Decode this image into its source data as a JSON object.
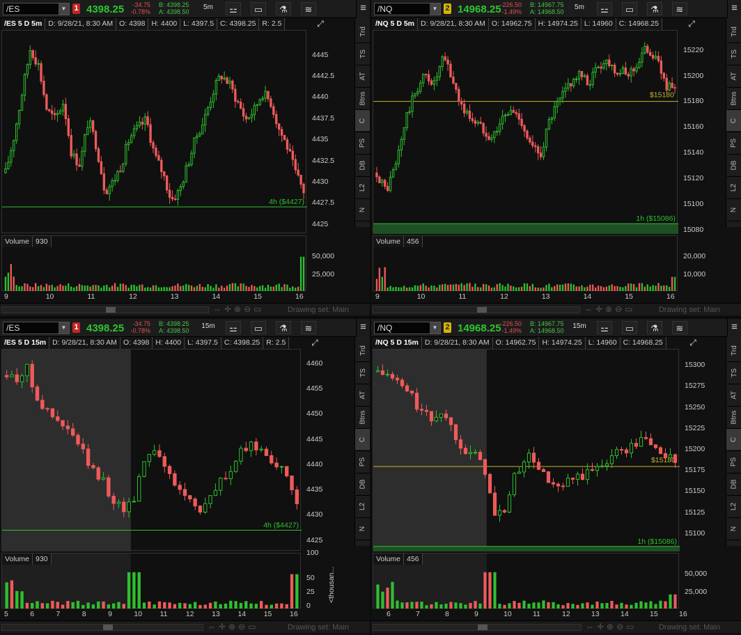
{
  "panes": [
    {
      "symbol": "/ES",
      "badge": "1",
      "badge_color": "#c0261f",
      "last": "4398.25",
      "change": "-34.75",
      "change_pct": "-0.78%",
      "bid": "B: 4398.25",
      "ask": "A: 4398.50",
      "timeframe": "5m",
      "info": [
        "/ES 5 D 5m",
        "D: 9/28/21, 8:30 AM",
        "O: 4398",
        "H: 4400",
        "L: 4397.5",
        "C: 4398.25",
        "R: 2.5"
      ],
      "ylabels": [
        "4445",
        "4442.5",
        "4440",
        "4437.5",
        "4435",
        "4432.5",
        "4430",
        "4427.5",
        "4425"
      ],
      "ymin": 4424.0,
      "ymax": 4448.0,
      "level_label": "4h ($4427)",
      "level": 4427.2,
      "level_color": "#2fbf2f",
      "volume_label": "Volume",
      "volume_value": "930",
      "vol_ylabels": [
        "50,000",
        "25,000"
      ],
      "vol_max": 65000,
      "xlabels": [
        "9",
        "10",
        "11",
        "12",
        "13",
        "14",
        "15",
        "16"
      ],
      "drawing_set": "Drawing set: Main"
    },
    {
      "symbol": "/NQ",
      "badge": "2",
      "badge_color": "#d6b400",
      "last": "14968.25",
      "change": "-226.50",
      "change_pct": "-1.49%",
      "bid": "B: 14967.75",
      "ask": "A: 14968.50",
      "timeframe": "5m",
      "info": [
        "/NQ 5 D 5m",
        "D: 9/28/21, 8:30 AM",
        "O: 14962.75",
        "H: 14974.25",
        "L: 14960",
        "C: 14968.25"
      ],
      "ylabels": [
        "15220",
        "15200",
        "15180",
        "15160",
        "15140",
        "15120",
        "15100",
        "15080"
      ],
      "ymin": 15078,
      "ymax": 15236,
      "level_label": "1h ($15086)",
      "level": 15086,
      "level_color": "#2fbf2f",
      "h_label": "$15180",
      "h_level": 15181,
      "h_color": "#c9b32c",
      "volume_label": "Volume",
      "volume_value": "456",
      "vol_ylabels": [
        "20,000",
        "10,000"
      ],
      "vol_max": 27000,
      "xlabels": [
        "9",
        "10",
        "11",
        "12",
        "13",
        "14",
        "15",
        "16"
      ],
      "drawing_set": "Drawing set: Main"
    },
    {
      "symbol": "/ES",
      "badge": "1",
      "badge_color": "#c0261f",
      "last": "4398.25",
      "change": "-34.75",
      "change_pct": "-0.78%",
      "bid": "B: 4398.25",
      "ask": "A: 4398.50",
      "timeframe": "15m",
      "info": [
        "/ES 5 D 15m",
        "D: 9/28/21, 8:30 AM",
        "O: 4398",
        "H: 4400",
        "L: 4397.5",
        "C: 4398.25",
        "R: 2.5"
      ],
      "ylabels": [
        "4460",
        "4455",
        "4450",
        "4445",
        "4440",
        "4435",
        "4430",
        "4425"
      ],
      "ymin": 4423,
      "ymax": 4463,
      "level_label": "4h ($4427)",
      "level": 4427.2,
      "level_color": "#2fbf2f",
      "volume_label": "Volume",
      "volume_value": "930",
      "vol_ylabels": [
        "100",
        "50",
        "25",
        "0"
      ],
      "vol_unit": "<thousan...",
      "vol_max": 115,
      "xlabels": [
        "5",
        "6",
        "7",
        "8",
        "9",
        "10",
        "11",
        "12",
        "13",
        "14",
        "15",
        "16"
      ],
      "drawing_set": "Drawing set: Main"
    },
    {
      "symbol": "/NQ",
      "badge": "2",
      "badge_color": "#d6b400",
      "last": "14968.25",
      "change": "-226.50",
      "change_pct": "-1.49%",
      "bid": "B: 14967.75",
      "ask": "A: 14968.50",
      "timeframe": "15m",
      "info": [
        "/NQ 5 D 15m",
        "D: 9/28/21, 8:30 AM",
        "O: 14962.75",
        "H: 14974.25",
        "L: 14960",
        "C: 14968.25"
      ],
      "ylabels": [
        "15300",
        "15275",
        "15250",
        "15225",
        "15200",
        "15175",
        "15150",
        "15125",
        "15100"
      ],
      "ymin": 15080,
      "ymax": 15320,
      "level_label": "1h ($15086)",
      "level": 15086,
      "level_color": "#2fbf2f",
      "h_label": "$15180",
      "h_level": 15181,
      "h_color": "#c9b32c",
      "volume_label": "Volume",
      "volume_value": "456",
      "vol_ylabels": [
        "50,000",
        "25,000"
      ],
      "vol_max": 70000,
      "xlabels": [
        "6",
        "7",
        "8",
        "9",
        "10",
        "11",
        "12",
        "13",
        "14",
        "15",
        "16"
      ],
      "drawing_set": "Drawing set: Main"
    }
  ],
  "side_tabs": [
    "Trd",
    "TS",
    "AT",
    "Btns",
    "C",
    "PS",
    "DB",
    "L2",
    "N"
  ],
  "colors": {
    "up": "#2fbf2f",
    "down": "#ee5a5a",
    "bg": "#101010"
  }
}
